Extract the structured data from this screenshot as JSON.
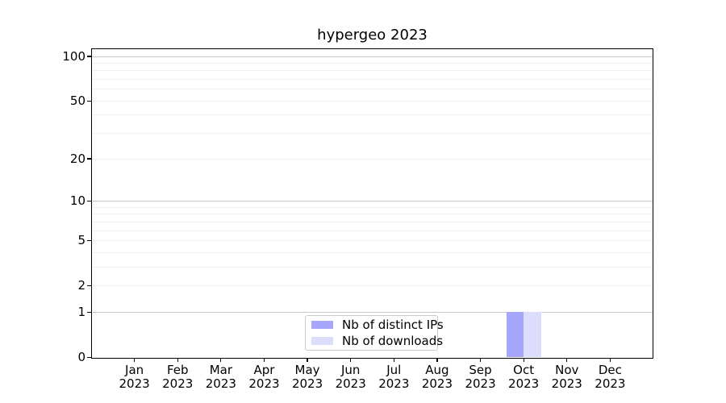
{
  "chart_data": {
    "type": "bar",
    "title": "hypergeo 2023",
    "categories": [
      {
        "label": "Jan",
        "sublabel": "2023"
      },
      {
        "label": "Feb",
        "sublabel": "2023"
      },
      {
        "label": "Mar",
        "sublabel": "2023"
      },
      {
        "label": "Apr",
        "sublabel": "2023"
      },
      {
        "label": "May",
        "sublabel": "2023"
      },
      {
        "label": "Jun",
        "sublabel": "2023"
      },
      {
        "label": "Jul",
        "sublabel": "2023"
      },
      {
        "label": "Aug",
        "sublabel": "2023"
      },
      {
        "label": "Sep",
        "sublabel": "2023"
      },
      {
        "label": "Oct",
        "sublabel": "2023"
      },
      {
        "label": "Nov",
        "sublabel": "2023"
      },
      {
        "label": "Dec",
        "sublabel": "2023"
      }
    ],
    "series": [
      {
        "name": "Nb of distinct IPs",
        "color": "#a6a6fa",
        "values": [
          0,
          0,
          0,
          0,
          0,
          0,
          0,
          0,
          0,
          1,
          0,
          0
        ]
      },
      {
        "name": "Nb of downloads",
        "color": "#dcdcfb",
        "values": [
          0,
          0,
          0,
          0,
          0,
          0,
          0,
          0,
          0,
          1,
          0,
          0
        ]
      }
    ],
    "xlabel": "",
    "ylabel": "",
    "yscale": "log1p",
    "ylim": [
      0,
      112
    ],
    "yticks": [
      0,
      1,
      2,
      5,
      10,
      20,
      50,
      100
    ],
    "grid": "horizontal",
    "grid_major_at": [
      1,
      10,
      100
    ],
    "grid_minor_at": [
      2,
      3,
      4,
      5,
      6,
      7,
      8,
      9,
      20,
      30,
      40,
      50,
      60,
      70,
      80,
      90
    ],
    "legend_position": "lower center"
  }
}
